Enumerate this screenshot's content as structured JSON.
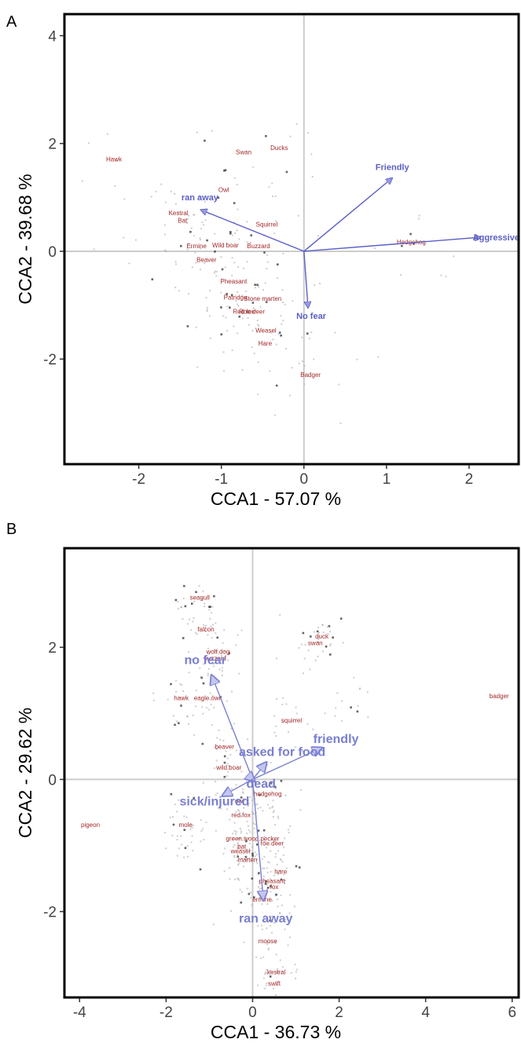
{
  "chart_data": [
    {
      "type": "scatter",
      "panel_label": "A",
      "xlabel": "CCA1 - 57.07 %",
      "ylabel": "CCA2 - 39.68 %",
      "xlim": [
        -2.9,
        2.6
      ],
      "ylim": [
        -3.95,
        4.4
      ],
      "xticks": [
        -2,
        -1,
        0,
        1,
        2
      ],
      "yticks": [
        -2,
        0,
        2,
        4
      ],
      "reference_lines": {
        "x": 0,
        "y": 0
      },
      "vectors": [
        {
          "label": "ran away",
          "x": -1.25,
          "y": 0.77
        },
        {
          "label": "Friendly",
          "x": 1.07,
          "y": 1.36
        },
        {
          "label": "Aggressive",
          "x": 2.14,
          "y": 0.26
        },
        {
          "label": "No fear",
          "x": 0.05,
          "y": -1.05
        }
      ],
      "species": [
        {
          "label": "Hawk",
          "x": -2.3,
          "y": 1.67
        },
        {
          "label": "Swan",
          "x": -0.73,
          "y": 1.8
        },
        {
          "label": "Ducks",
          "x": -0.3,
          "y": 1.88
        },
        {
          "label": "Owl",
          "x": -0.97,
          "y": 1.1
        },
        {
          "label": "Squirrel",
          "x": -0.45,
          "y": 0.46
        },
        {
          "label": "Kestral",
          "x": -1.52,
          "y": 0.67
        },
        {
          "label": "Bat",
          "x": -1.47,
          "y": 0.53
        },
        {
          "label": "Ermine",
          "x": -1.3,
          "y": 0.06
        },
        {
          "label": "Wild boar",
          "x": -0.95,
          "y": 0.07
        },
        {
          "label": "Buzzard",
          "x": -0.55,
          "y": 0.06
        },
        {
          "label": "Beaver",
          "x": -1.18,
          "y": -0.2
        },
        {
          "label": "Pheasant",
          "x": -0.85,
          "y": -0.6
        },
        {
          "label": "Patridge",
          "x": -0.83,
          "y": -0.9
        },
        {
          "label": "Stone marten",
          "x": -0.5,
          "y": -0.92
        },
        {
          "label": "Red fox",
          "x": -0.73,
          "y": -1.16
        },
        {
          "label": "Roe deer",
          "x": -0.63,
          "y": -1.16
        },
        {
          "label": "Weasel",
          "x": -0.46,
          "y": -1.51
        },
        {
          "label": "Hare",
          "x": -0.47,
          "y": -1.75
        },
        {
          "label": "Hedgehog",
          "x": 1.3,
          "y": 0.13
        },
        {
          "label": "Badger",
          "x": 0.08,
          "y": -2.33
        }
      ]
    },
    {
      "type": "scatter",
      "panel_label": "B",
      "xlabel": "CCA1 - 36.73 %",
      "ylabel": "CCA2 - 29.62 %",
      "xlim": [
        -4.35,
        6.15
      ],
      "ylim": [
        -3.3,
        3.5
      ],
      "xticks": [
        -4,
        -2,
        0,
        2,
        4,
        6
      ],
      "yticks": [
        -2,
        0,
        2
      ],
      "reference_lines": {
        "x": 0,
        "y": 0
      },
      "vectors": [
        {
          "label": "no fear",
          "x": -0.95,
          "y": 1.58
        },
        {
          "label": "friendly",
          "x": 1.6,
          "y": 0.48
        },
        {
          "label": "asked for food",
          "x": 0.32,
          "y": 0.26
        },
        {
          "label": "dead",
          "x": 0.05,
          "y": -0.03
        },
        {
          "label": "sick/injured",
          "x": -0.7,
          "y": -0.25
        },
        {
          "label": "ran away",
          "x": 0.25,
          "y": -1.83
        }
      ],
      "species": [
        {
          "label": "seagull",
          "x": -1.22,
          "y": 2.72
        },
        {
          "label": "falcon",
          "x": -1.08,
          "y": 2.24
        },
        {
          "label": "wolf.dog",
          "x": -0.8,
          "y": 1.9
        },
        {
          "label": "buzzard",
          "x": -0.87,
          "y": 1.8
        },
        {
          "label": "duck",
          "x": 1.6,
          "y": 2.13
        },
        {
          "label": "swan",
          "x": 1.45,
          "y": 2.03
        },
        {
          "label": "badger",
          "x": 5.7,
          "y": 1.23
        },
        {
          "label": "hawk",
          "x": -1.65,
          "y": 1.2
        },
        {
          "label": "eagle.owl",
          "x": -1.05,
          "y": 1.2
        },
        {
          "label": "squirrel",
          "x": 0.9,
          "y": 0.86
        },
        {
          "label": "beaver",
          "x": -0.65,
          "y": 0.46
        },
        {
          "label": "wild.boar",
          "x": -0.55,
          "y": 0.15
        },
        {
          "label": "hedgehog",
          "x": 0.35,
          "y": -0.25
        },
        {
          "label": "owl",
          "x": -0.3,
          "y": -0.36
        },
        {
          "label": "red.fox",
          "x": -0.27,
          "y": -0.57
        },
        {
          "label": "pigeon",
          "x": -3.75,
          "y": -0.72
        },
        {
          "label": "mole",
          "x": -1.55,
          "y": -0.72
        },
        {
          "label": "green.wood.pecker",
          "x": 0.0,
          "y": -0.93
        },
        {
          "label": "roe.deer",
          "x": 0.45,
          "y": -1.0
        },
        {
          "label": "bat",
          "x": -0.25,
          "y": -1.05
        },
        {
          "label": "weasel",
          "x": -0.28,
          "y": -1.12
        },
        {
          "label": "marten",
          "x": -0.12,
          "y": -1.25
        },
        {
          "label": "hare",
          "x": 0.65,
          "y": -1.43
        },
        {
          "label": "pheasant",
          "x": 0.45,
          "y": -1.57
        },
        {
          "label": "fox",
          "x": 0.5,
          "y": -1.66
        },
        {
          "label": "ermine",
          "x": 0.22,
          "y": -1.85
        },
        {
          "label": "moose",
          "x": 0.35,
          "y": -2.48
        },
        {
          "label": "kestral",
          "x": 0.55,
          "y": -2.95
        },
        {
          "label": "swift",
          "x": 0.5,
          "y": -3.12
        }
      ]
    }
  ]
}
